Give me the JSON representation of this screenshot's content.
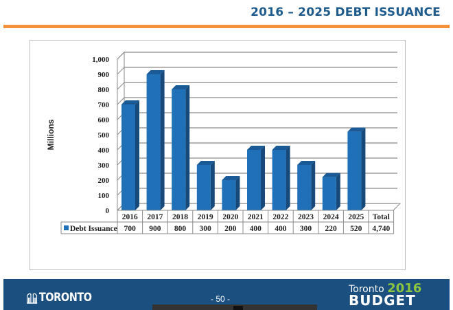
{
  "header": {
    "title": "2016 – 2025 DEBT ISSUANCE"
  },
  "colors": {
    "title": "#1f5b8c",
    "rule": "#f4923b",
    "bar_front": "#2070b8",
    "bar_side": "#17497a",
    "bar_top": "#1a5a96",
    "footer": "#1b4f80",
    "budget_year": "#8cc63f"
  },
  "chart_data": {
    "type": "bar",
    "title": "2016 – 2025 Debt Issuance",
    "xlabel": "",
    "ylabel": "Millions",
    "ylim": [
      0,
      1000
    ],
    "yticks": [
      "0",
      "100",
      "200",
      "300",
      "400",
      "500",
      "600",
      "700",
      "800",
      "900",
      "1,000"
    ],
    "grid": true,
    "three_d": true,
    "legend_position": "data-table",
    "categories": [
      "2016",
      "2017",
      "2018",
      "2019",
      "2020",
      "2021",
      "2022",
      "2023",
      "2024",
      "2025"
    ],
    "series": [
      {
        "name": "Debt Issuance",
        "values": [
          700,
          900,
          800,
          300,
          200,
          400,
          400,
          300,
          220,
          520
        ]
      }
    ],
    "table": {
      "columns": [
        "2016",
        "2017",
        "2018",
        "2019",
        "2020",
        "2021",
        "2022",
        "2023",
        "2024",
        "2025",
        "Total"
      ],
      "row_label": "Debt Issuance",
      "values": [
        "700",
        "900",
        "800",
        "300",
        "200",
        "400",
        "400",
        "300",
        "220",
        "520",
        "4,740"
      ]
    }
  },
  "footer": {
    "city_logo": "TORONTO",
    "page_number": "- 50 -",
    "budget_line1": "Toronto",
    "budget_year": "2016",
    "budget_line2": "BUDGET"
  }
}
